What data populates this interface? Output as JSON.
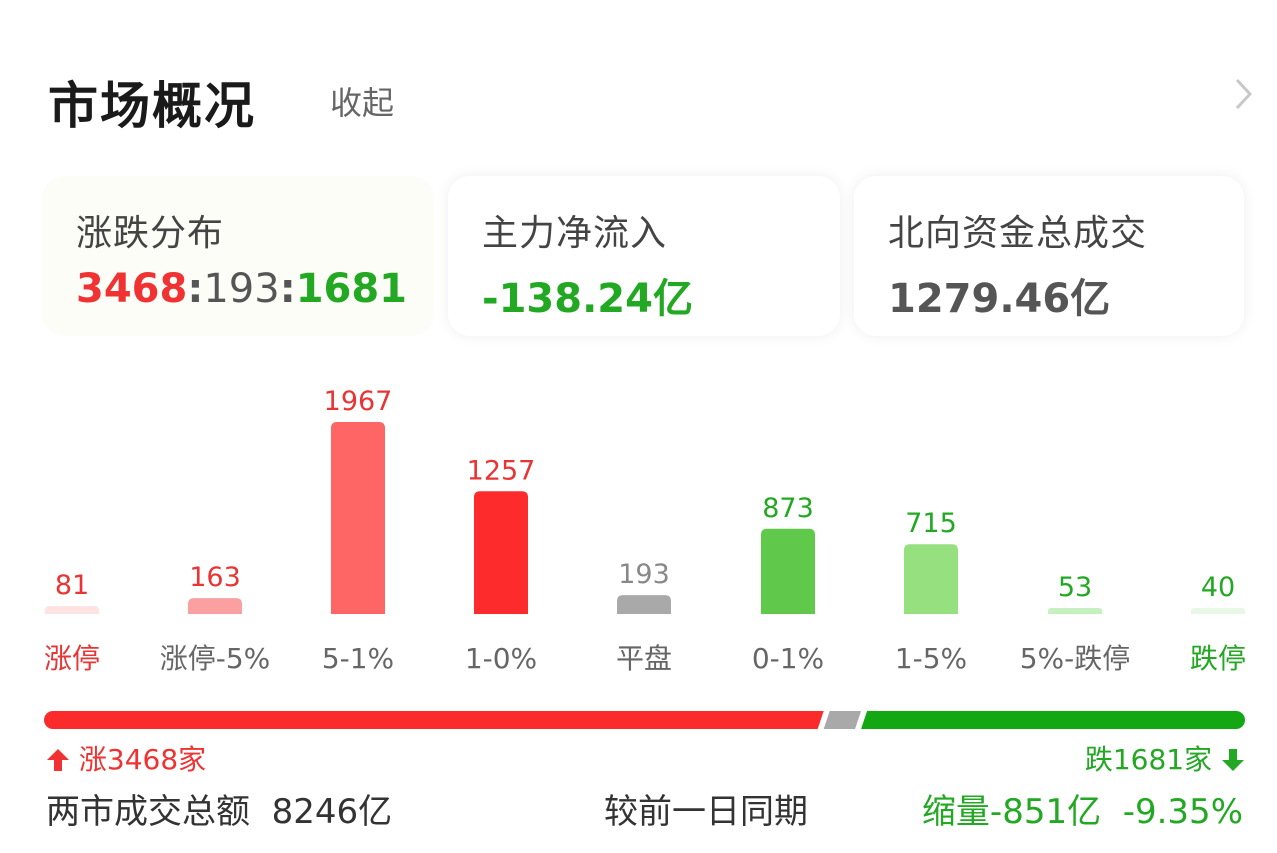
{
  "header": {
    "title": "市场概况",
    "collapse_label": "收起"
  },
  "cards": {
    "distribution": {
      "label": "涨跌分布",
      "up": "3468",
      "sep1": ":",
      "flat": "193",
      "sep2": ":",
      "down": "1681"
    },
    "main_inflow": {
      "label": "主力净流入",
      "value": "-138.24亿"
    },
    "northbound": {
      "label": "北向资金总成交",
      "value": "1279.46亿"
    }
  },
  "chart_data": {
    "type": "bar",
    "categories": [
      "涨停",
      "涨停-5%",
      "5-1%",
      "1-0%",
      "平盘",
      "0-1%",
      "1-5%",
      "5%-跌停",
      "跌停"
    ],
    "values": [
      81,
      163,
      1967,
      1257,
      193,
      873,
      715,
      53,
      40
    ],
    "bar_colors": [
      "#fde3e3",
      "#fba0a0",
      "#fe6565",
      "#fd2b2b",
      "#a9a9a9",
      "#60c94c",
      "#96e07f",
      "#c7f0c0",
      "#e9f8e6"
    ],
    "label_colors": [
      "#e83434",
      "#e83434",
      "#e83434",
      "#e83434",
      "#888888",
      "#22a822",
      "#22a822",
      "#22a822",
      "#22a822"
    ],
    "category_colors": [
      "#e83434",
      "#666666",
      "#666666",
      "#666666",
      "#666666",
      "#666666",
      "#666666",
      "#666666",
      "#22a822"
    ]
  },
  "breadth": {
    "up_count": 3468,
    "flat_count": 193,
    "down_count": 1681,
    "up_label": "涨3468家",
    "down_label": "跌1681家",
    "up_color": "#fb2b2b",
    "flat_color": "#a9a9a9",
    "down_color": "#13a813"
  },
  "volume": {
    "label": "两市成交总额",
    "value": "8246亿",
    "compare_label": "较前一日同期",
    "change": "缩量-851亿",
    "pct": "-9.35%"
  }
}
